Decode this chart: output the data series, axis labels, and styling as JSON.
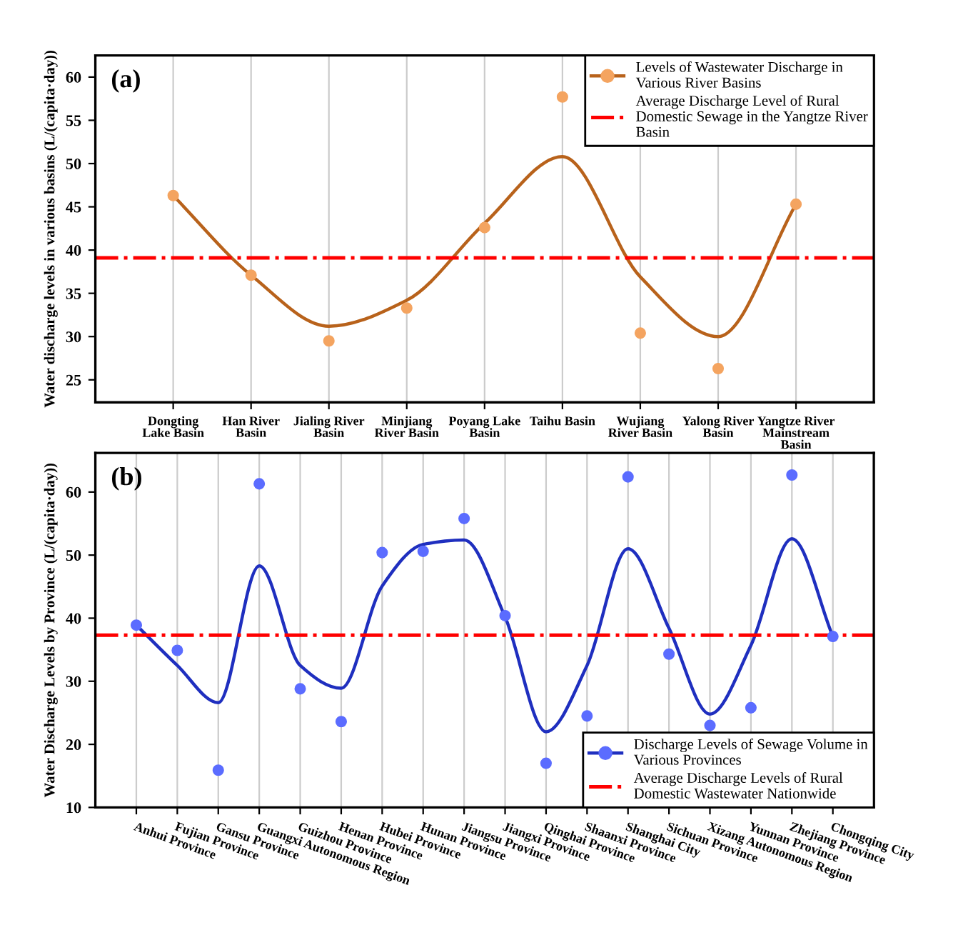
{
  "chart_data": [
    {
      "type": "scatter",
      "annotations": [
        "(a)"
      ],
      "ylabel": "Water discharge levels in various basins (L/(capita·day))",
      "categories": [
        "Dongting\nLake Basin",
        "Han River\nBasin",
        "Jialing River\nBasin",
        "Minjiang\nRiver Basin",
        "Poyang Lake\nBasin",
        "Taihu Basin",
        "Wujiang\nRiver Basin",
        "Yalong River\nBasin",
        "Yangtze River\nMainstream\nBasin"
      ],
      "ylim": [
        22.4,
        62.5
      ],
      "yticks": [
        25,
        30,
        35,
        40,
        45,
        50,
        55,
        60
      ],
      "grid": "x",
      "legend": "top right",
      "series": [
        {
          "color": "#f4a460",
          "marker": "circle",
          "values": [
            46.3,
            37.1,
            29.5,
            33.3,
            42.6,
            57.7,
            30.4,
            26.3,
            45.3
          ]
        },
        {
          "type": "line",
          "name": "Levels of Wastewater Discharge in Various River Basins",
          "color": "#b8621b",
          "values": [
            46.3,
            37.1,
            31.2,
            34.2,
            43.1,
            50.8,
            36.9,
            30.0,
            45.3
          ]
        }
      ],
      "ref_lines": [
        {
          "axis": "y",
          "value": 39.1,
          "label": "Average Discharge Level of Rural Domestic Sewage in the Yangtze River Basin",
          "color": "#ff0000",
          "line_style": "dashdot"
        }
      ]
    },
    {
      "type": "scatter",
      "annotations": [
        "(b)"
      ],
      "ylabel": "Water Discharge Levels by Province (L/(capita·day))",
      "categories": [
        "Anhui Province",
        "Fujian Province",
        "Gansu Province",
        "Guangxi Autonomous Region",
        "Guizhou Province",
        "Henan Province",
        "Hubei Province",
        "Hunan Province",
        "Jiangsu Province",
        "Jiangxi Province",
        "Qinghai Province",
        "Shaanxi Province",
        "Shanghai City",
        "Sichuan Province",
        "Xizang Autonomous Region",
        "Yunnan Province",
        "Zhejiang Province",
        "Chongqing City"
      ],
      "ylim": [
        10,
        66.2
      ],
      "yticks": [
        10,
        20,
        30,
        40,
        50,
        60
      ],
      "grid": "x",
      "legend": "bottom right",
      "series": [
        {
          "color": "#5b6cff",
          "marker": "circle",
          "values": [
            38.9,
            34.9,
            15.9,
            61.3,
            28.8,
            23.6,
            50.4,
            50.6,
            55.8,
            40.4,
            17.0,
            24.5,
            62.4,
            34.3,
            23.0,
            25.8,
            62.7,
            37.1
          ]
        },
        {
          "type": "line",
          "name": "Discharge Levels of Sewage Volume in Various Provinces",
          "color": "#1f2fbf",
          "values": [
            38.9,
            32.5,
            26.6,
            48.3,
            32.5,
            28.9,
            45.1,
            51.7,
            52.4,
            40.2,
            22.0,
            32.5,
            51.0,
            38.4,
            24.8,
            35.7,
            52.6,
            37.1
          ]
        }
      ],
      "ref_lines": [
        {
          "axis": "y",
          "value": 37.3,
          "label": "Average Discharge Levels of Rural Domestic Wastewater Nationwide",
          "color": "#ff0000",
          "line_style": "dashdot"
        }
      ]
    }
  ]
}
